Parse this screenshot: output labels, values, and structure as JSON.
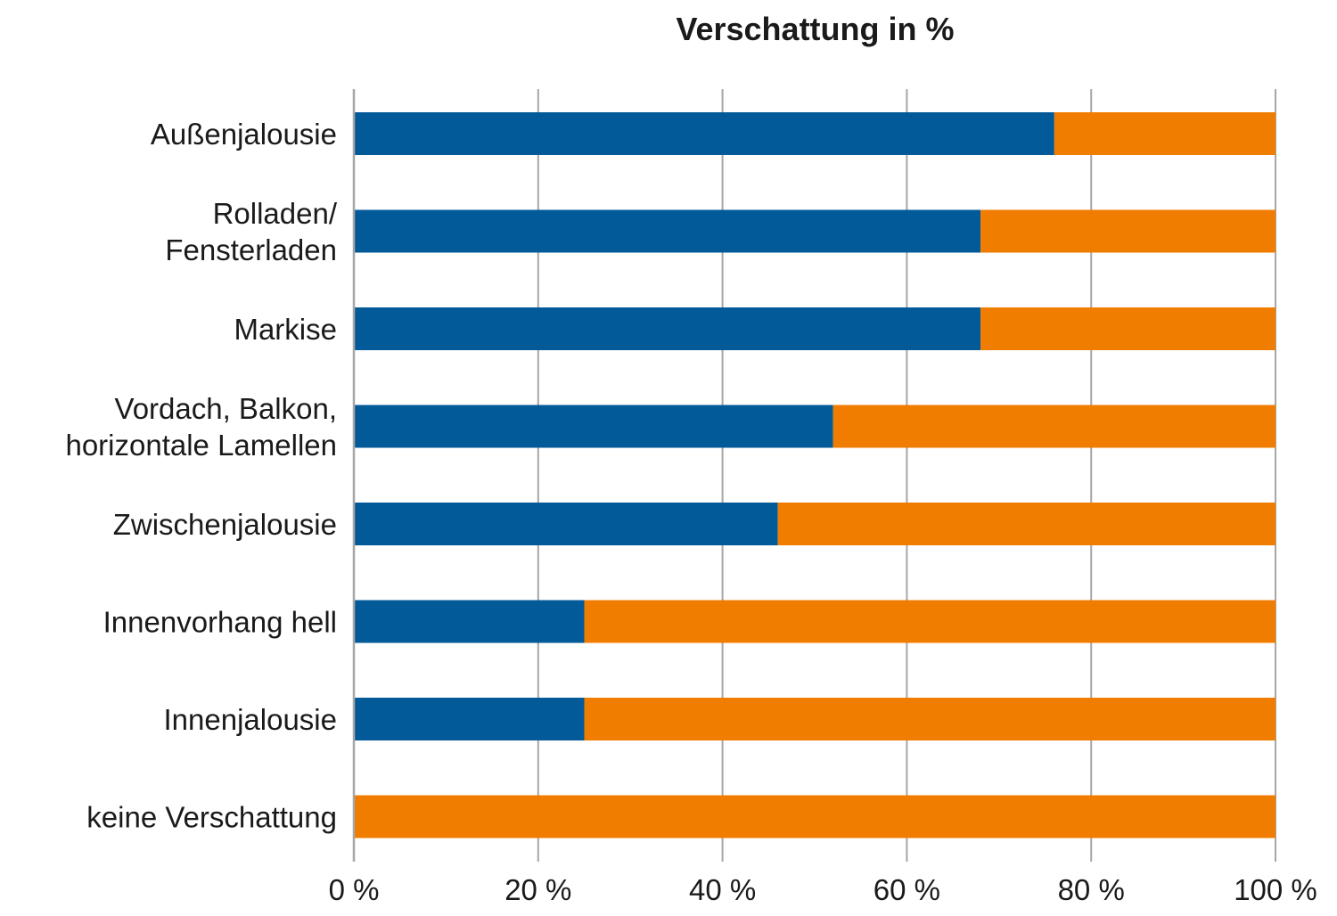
{
  "chart_data": {
    "type": "bar",
    "orientation": "horizontal",
    "stacked": true,
    "title": "Verschattung in %",
    "xlabel": "",
    "ylabel": "",
    "xlim": [
      0,
      100
    ],
    "x_ticks": [
      "0 %",
      "20 %",
      "40 %",
      "60 %",
      "80 %",
      "100 %"
    ],
    "x_tick_values": [
      0,
      20,
      40,
      60,
      80,
      100
    ],
    "grid": true,
    "legend": "none",
    "categories": [
      [
        "Außenjalousie"
      ],
      [
        "Rolladen/",
        "Fensterladen"
      ],
      [
        "Markise"
      ],
      [
        "Vordach, Balkon,",
        "horizontale Lamellen"
      ],
      [
        "Zwischenjalousie"
      ],
      [
        "Innenvorhang hell"
      ],
      [
        "Innenjalousie"
      ],
      [
        "keine Verschattung"
      ]
    ],
    "series": [
      {
        "color": "#035a99",
        "values": [
          76,
          68,
          68,
          52,
          46,
          25,
          25,
          0
        ]
      },
      {
        "color": "#f07c00",
        "values": [
          24,
          32,
          32,
          48,
          54,
          75,
          75,
          100
        ]
      }
    ]
  }
}
